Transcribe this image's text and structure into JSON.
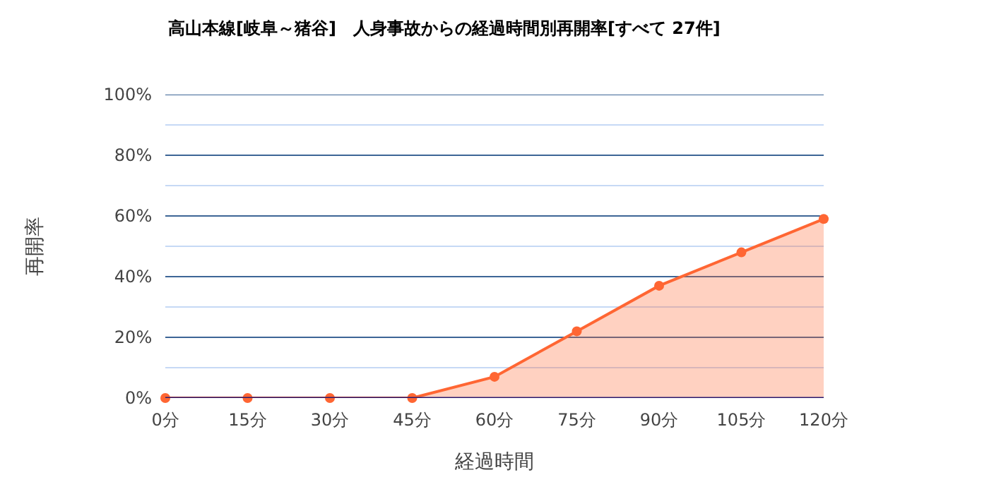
{
  "chart_data": {
    "type": "area",
    "title": "高山本線[岐阜～猪谷]　人身事故からの経過時間別再開率[すべて 27件]",
    "xlabel": "経過時間",
    "ylabel": "再開率",
    "categories": [
      "0分",
      "15分",
      "30分",
      "45分",
      "60分",
      "75分",
      "90分",
      "105分",
      "120分"
    ],
    "series": [
      {
        "color": "#ff6633",
        "values": [
          0,
          0,
          0,
          0,
          7,
          22,
          37,
          48,
          59
        ]
      }
    ],
    "ylim": [
      0,
      100
    ],
    "yticks": [
      {
        "value": 0,
        "label": "0%"
      },
      {
        "value": 10,
        "label": null
      },
      {
        "value": 20,
        "label": "20%"
      },
      {
        "value": 30,
        "label": null
      },
      {
        "value": 40,
        "label": "40%"
      },
      {
        "value": 50,
        "label": null
      },
      {
        "value": 60,
        "label": "60%"
      },
      {
        "value": 70,
        "label": null
      },
      {
        "value": 80,
        "label": "80%"
      },
      {
        "value": 90,
        "label": null
      },
      {
        "value": 100,
        "label": "100%"
      }
    ],
    "grid": true,
    "marker": "circle"
  }
}
